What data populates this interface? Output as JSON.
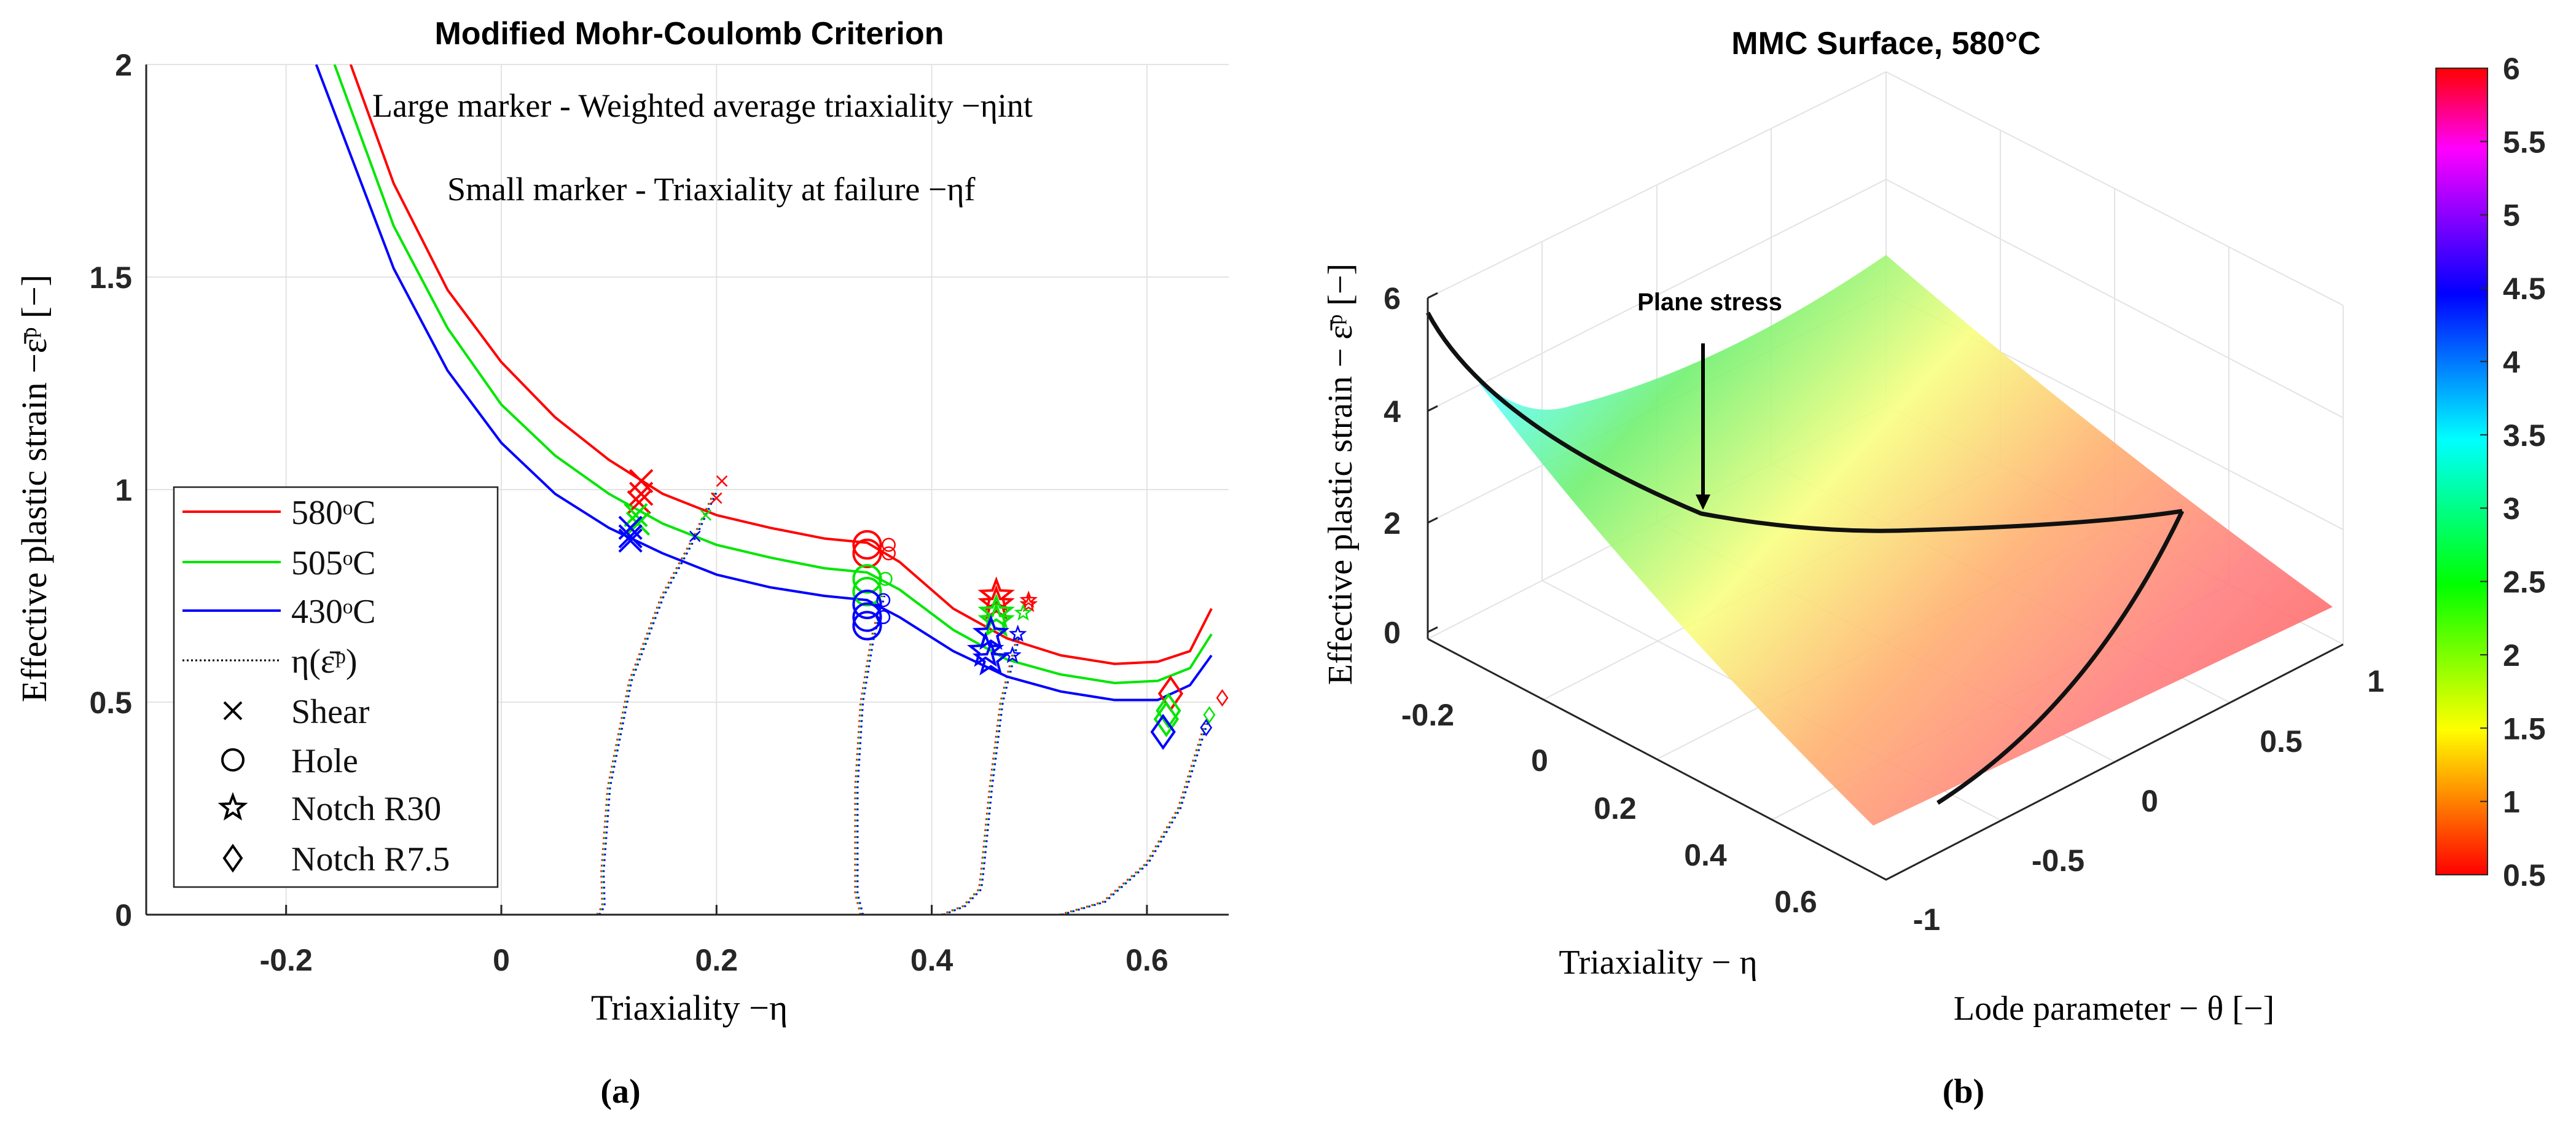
{
  "chart_data": [
    {
      "type": "line",
      "panel_label": "(a)",
      "title": "Modified Mohr-Coulomb Criterion",
      "xlabel": "Triaxiality −η",
      "ylabel": "Effective plastic strain −ε̄ᵖ [−]",
      "xlim": [
        -0.33,
        0.676
      ],
      "ylim": [
        0,
        2
      ],
      "xticks": [
        -0.2,
        0,
        0.2,
        0.4,
        0.6
      ],
      "xtick_labels": [
        "-0.2",
        "0",
        "0.2",
        "0.4",
        "0.6"
      ],
      "yticks": [
        0,
        0.5,
        1,
        1.5,
        2
      ],
      "ytick_labels": [
        "0",
        "0.5",
        "1",
        "1.5",
        "2"
      ],
      "grid": true,
      "annotations": [
        "Large marker - Weighted average triaxiality −ηint",
        "Small marker - Triaxiality at failure −ηf"
      ],
      "legend_position": "bottom-left",
      "legend": [
        {
          "label": "580ᵒC",
          "kind": "line",
          "color": "#ff0000"
        },
        {
          "label": "505ᵒC",
          "kind": "line",
          "color": "#00e600"
        },
        {
          "label": "430ᵒC",
          "kind": "line",
          "color": "#0000ff"
        },
        {
          "label": "η(ε̄ᵖ)",
          "kind": "dotted",
          "color": "#000000"
        },
        {
          "label": "Shear",
          "kind": "x",
          "color": "#000000"
        },
        {
          "label": "Hole",
          "kind": "circle",
          "color": "#000000"
        },
        {
          "label": "Notch R30",
          "kind": "star",
          "color": "#000000"
        },
        {
          "label": "Notch R7.5",
          "kind": "diamond",
          "color": "#000000"
        }
      ],
      "series": [
        {
          "name": "580ᵒC",
          "color": "#ff0000",
          "points": [
            [
              -0.14,
              2
            ],
            [
              -0.1,
              1.72
            ],
            [
              -0.05,
              1.47
            ],
            [
              0,
              1.3
            ],
            [
              0.05,
              1.17
            ],
            [
              0.1,
              1.07
            ],
            [
              0.15,
              0.99
            ],
            [
              0.2,
              0.94
            ],
            [
              0.25,
              0.91
            ],
            [
              0.3,
              0.885
            ],
            [
              0.34,
              0.875
            ],
            [
              0.37,
              0.83
            ],
            [
              0.42,
              0.72
            ],
            [
              0.47,
              0.65
            ],
            [
              0.52,
              0.61
            ],
            [
              0.57,
              0.59
            ],
            [
              0.61,
              0.595
            ],
            [
              0.64,
              0.62
            ],
            [
              0.66,
              0.72
            ]
          ]
        },
        {
          "name": "505ᵒC",
          "color": "#00e600",
          "points": [
            [
              -0.155,
              2
            ],
            [
              -0.1,
              1.62
            ],
            [
              -0.05,
              1.38
            ],
            [
              0,
              1.2
            ],
            [
              0.05,
              1.08
            ],
            [
              0.1,
              0.99
            ],
            [
              0.15,
              0.92
            ],
            [
              0.2,
              0.87
            ],
            [
              0.25,
              0.84
            ],
            [
              0.3,
              0.815
            ],
            [
              0.34,
              0.805
            ],
            [
              0.37,
              0.765
            ],
            [
              0.42,
              0.67
            ],
            [
              0.47,
              0.6
            ],
            [
              0.52,
              0.565
            ],
            [
              0.57,
              0.545
            ],
            [
              0.61,
              0.55
            ],
            [
              0.64,
              0.58
            ],
            [
              0.66,
              0.66
            ]
          ]
        },
        {
          "name": "430ᵒC",
          "color": "#0000ff",
          "points": [
            [
              -0.172,
              2
            ],
            [
              -0.1,
              1.52
            ],
            [
              -0.05,
              1.28
            ],
            [
              0,
              1.11
            ],
            [
              0.05,
              0.99
            ],
            [
              0.1,
              0.91
            ],
            [
              0.15,
              0.85
            ],
            [
              0.2,
              0.8
            ],
            [
              0.25,
              0.77
            ],
            [
              0.3,
              0.75
            ],
            [
              0.34,
              0.74
            ],
            [
              0.37,
              0.7
            ],
            [
              0.42,
              0.62
            ],
            [
              0.47,
              0.56
            ],
            [
              0.52,
              0.525
            ],
            [
              0.57,
              0.505
            ],
            [
              0.61,
              0.505
            ],
            [
              0.64,
              0.54
            ],
            [
              0.66,
              0.61
            ]
          ]
        }
      ],
      "eta_paths": [
        {
          "test": "Shear",
          "points": [
            [
              0.09,
              0
            ],
            [
              0.095,
              0.02
            ],
            [
              0.094,
              0.1
            ],
            [
              0.1,
              0.3
            ],
            [
              0.12,
              0.55
            ],
            [
              0.15,
              0.75
            ],
            [
              0.18,
              0.89
            ],
            [
              0.2,
              1.0
            ]
          ]
        },
        {
          "test": "Hole",
          "points": [
            [
              0.335,
              0
            ],
            [
              0.33,
              0.05
            ],
            [
              0.33,
              0.3
            ],
            [
              0.335,
              0.5
            ],
            [
              0.345,
              0.65
            ],
            [
              0.355,
              0.75
            ]
          ]
        },
        {
          "test": "Notch R30",
          "points": [
            [
              0.41,
              0
            ],
            [
              0.43,
              0.02
            ],
            [
              0.445,
              0.06
            ],
            [
              0.447,
              0.1
            ],
            [
              0.455,
              0.3
            ],
            [
              0.465,
              0.5
            ],
            [
              0.48,
              0.65
            ]
          ]
        },
        {
          "test": "Notch R7.5",
          "points": [
            [
              0.52,
              0
            ],
            [
              0.56,
              0.03
            ],
            [
              0.6,
              0.12
            ],
            [
              0.63,
              0.25
            ],
            [
              0.655,
              0.45
            ]
          ]
        }
      ],
      "markers": [
        {
          "test": "Shear",
          "temp": "580",
          "size": "large",
          "x": 0.13,
          "y": 1.02
        },
        {
          "test": "Shear",
          "temp": "580",
          "size": "large",
          "x": 0.13,
          "y": 0.99
        },
        {
          "test": "Shear",
          "temp": "580",
          "size": "large",
          "x": 0.128,
          "y": 0.97
        },
        {
          "test": "Shear",
          "temp": "505",
          "size": "large",
          "x": 0.125,
          "y": 0.94
        },
        {
          "test": "Shear",
          "temp": "505",
          "size": "large",
          "x": 0.127,
          "y": 0.92
        },
        {
          "test": "Shear",
          "temp": "430",
          "size": "large",
          "x": 0.12,
          "y": 0.91
        },
        {
          "test": "Shear",
          "temp": "430",
          "size": "large",
          "x": 0.12,
          "y": 0.89
        },
        {
          "test": "Shear",
          "temp": "430",
          "size": "large",
          "x": 0.12,
          "y": 0.88
        },
        {
          "test": "Shear",
          "temp": "580",
          "size": "small",
          "x": 0.2,
          "y": 0.98
        },
        {
          "test": "Shear",
          "temp": "580",
          "size": "small",
          "x": 0.205,
          "y": 1.02
        },
        {
          "test": "Shear",
          "temp": "505",
          "size": "small",
          "x": 0.19,
          "y": 0.94
        },
        {
          "test": "Shear",
          "temp": "430",
          "size": "small",
          "x": 0.18,
          "y": 0.89
        },
        {
          "test": "Hole",
          "temp": "580",
          "size": "large",
          "x": 0.34,
          "y": 0.87
        },
        {
          "test": "Hole",
          "temp": "580",
          "size": "large",
          "x": 0.34,
          "y": 0.85
        },
        {
          "test": "Hole",
          "temp": "505",
          "size": "large",
          "x": 0.34,
          "y": 0.79
        },
        {
          "test": "Hole",
          "temp": "505",
          "size": "large",
          "x": 0.34,
          "y": 0.76
        },
        {
          "test": "Hole",
          "temp": "430",
          "size": "large",
          "x": 0.34,
          "y": 0.73
        },
        {
          "test": "Hole",
          "temp": "430",
          "size": "large",
          "x": 0.34,
          "y": 0.7
        },
        {
          "test": "Hole",
          "temp": "430",
          "size": "large",
          "x": 0.34,
          "y": 0.68
        },
        {
          "test": "Hole",
          "temp": "580",
          "size": "small",
          "x": 0.36,
          "y": 0.87
        },
        {
          "test": "Hole",
          "temp": "580",
          "size": "small",
          "x": 0.36,
          "y": 0.85
        },
        {
          "test": "Hole",
          "temp": "505",
          "size": "small",
          "x": 0.357,
          "y": 0.79
        },
        {
          "test": "Hole",
          "temp": "430",
          "size": "small",
          "x": 0.355,
          "y": 0.74
        },
        {
          "test": "Hole",
          "temp": "430",
          "size": "small",
          "x": 0.355,
          "y": 0.7
        },
        {
          "test": "Notch R30",
          "temp": "580",
          "size": "large",
          "x": 0.46,
          "y": 0.75
        },
        {
          "test": "Notch R30",
          "temp": "580",
          "size": "large",
          "x": 0.46,
          "y": 0.73
        },
        {
          "test": "Notch R30",
          "temp": "505",
          "size": "large",
          "x": 0.46,
          "y": 0.71
        },
        {
          "test": "Notch R30",
          "temp": "505",
          "size": "large",
          "x": 0.46,
          "y": 0.69
        },
        {
          "test": "Notch R30",
          "temp": "430",
          "size": "large",
          "x": 0.455,
          "y": 0.66
        },
        {
          "test": "Notch R30",
          "temp": "430",
          "size": "large",
          "x": 0.45,
          "y": 0.62
        },
        {
          "test": "Notch R30",
          "temp": "430",
          "size": "large",
          "x": 0.455,
          "y": 0.6
        },
        {
          "test": "Notch R30",
          "temp": "580",
          "size": "small",
          "x": 0.49,
          "y": 0.74
        },
        {
          "test": "Notch R30",
          "temp": "580",
          "size": "small",
          "x": 0.49,
          "y": 0.73
        },
        {
          "test": "Notch R30",
          "temp": "505",
          "size": "small",
          "x": 0.485,
          "y": 0.71
        },
        {
          "test": "Notch R30",
          "temp": "430",
          "size": "small",
          "x": 0.48,
          "y": 0.66
        },
        {
          "test": "Notch R30",
          "temp": "430",
          "size": "small",
          "x": 0.475,
          "y": 0.61
        },
        {
          "test": "Notch R7.5",
          "temp": "580",
          "size": "large",
          "x": 0.622,
          "y": 0.52
        },
        {
          "test": "Notch R7.5",
          "temp": "505",
          "size": "large",
          "x": 0.62,
          "y": 0.48
        },
        {
          "test": "Notch R7.5",
          "temp": "505",
          "size": "large",
          "x": 0.618,
          "y": 0.46
        },
        {
          "test": "Notch R7.5",
          "temp": "430",
          "size": "large",
          "x": 0.615,
          "y": 0.43
        },
        {
          "test": "Notch R7.5",
          "temp": "580",
          "size": "small",
          "x": 0.67,
          "y": 0.51
        },
        {
          "test": "Notch R7.5",
          "temp": "505",
          "size": "small",
          "x": 0.658,
          "y": 0.47
        },
        {
          "test": "Notch R7.5",
          "temp": "430",
          "size": "small",
          "x": 0.655,
          "y": 0.44
        }
      ]
    },
    {
      "type": "surface3d",
      "panel_label": "(b)",
      "title": "MMC Surface, 580°C",
      "xlabel": "Triaxiality − η",
      "ylabel": "Lode parameter − θ [−]",
      "zlabel": "Effective plastic strain − ε̄ᵖ [−]",
      "xtick_labels": [
        "-0.2",
        "0",
        "0.2",
        "0.4",
        "0.6"
      ],
      "ytick_labels": [
        "1",
        "0.5",
        "0",
        "-0.5",
        "-1"
      ],
      "ztick_labels": [
        "6",
        "4",
        "2",
        "0"
      ],
      "zlim": [
        0,
        6
      ],
      "annotation": "Plane stress",
      "colorbar": {
        "range": [
          0.5,
          6
        ],
        "tick_labels": [
          "6",
          "5.5",
          "5",
          "4.5",
          "4",
          "3.5",
          "3",
          "2.5",
          "2",
          "1.5",
          "1",
          "0.5"
        ],
        "ticks": [
          6,
          5.5,
          5,
          4.5,
          4,
          3.5,
          3,
          2.5,
          2,
          1.5,
          1,
          0.5
        ],
        "colormap": [
          "#ff0000",
          "#ff8000",
          "#ffff00",
          "#80ff00",
          "#00ff00",
          "#00ff80",
          "#00ffff",
          "#0080ff",
          "#0000ff",
          "#8000ff",
          "#ff00ff",
          "#ff0080",
          "#ff0000"
        ]
      }
    }
  ]
}
